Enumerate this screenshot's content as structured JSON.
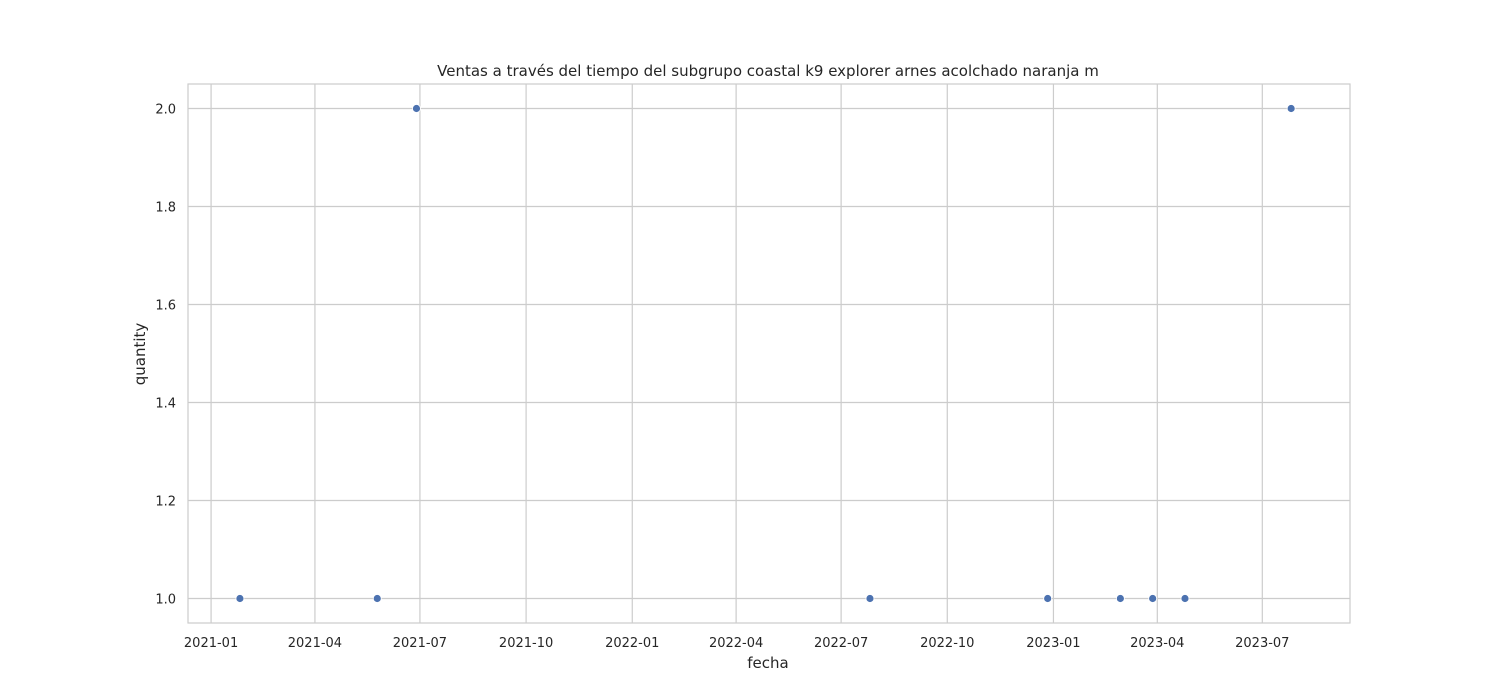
{
  "chart_data": {
    "type": "scatter",
    "title": "Ventas a través del tiempo del subgrupo coastal k9 explorer arnes acolchado naranja m",
    "xlabel": "fecha",
    "ylabel": "quantity",
    "x_ticks": [
      "2021-01",
      "2021-04",
      "2021-07",
      "2021-10",
      "2022-01",
      "2022-04",
      "2022-07",
      "2022-10",
      "2023-01",
      "2023-04",
      "2023-07"
    ],
    "y_ticks": [
      "1.0",
      "1.2",
      "1.4",
      "1.6",
      "1.8",
      "2.0"
    ],
    "xlim": [
      "2020-12-12",
      "2023-09-15"
    ],
    "ylim": [
      0.95,
      2.05
    ],
    "grid": true,
    "point_color": "#4c72b0",
    "points": [
      {
        "x": "2021-01-26",
        "y": 1
      },
      {
        "x": "2021-05-25",
        "y": 1
      },
      {
        "x": "2021-06-28",
        "y": 2
      },
      {
        "x": "2022-07-26",
        "y": 1
      },
      {
        "x": "2022-12-27",
        "y": 1
      },
      {
        "x": "2023-02-28",
        "y": 1
      },
      {
        "x": "2023-03-28",
        "y": 1
      },
      {
        "x": "2023-04-25",
        "y": 1
      },
      {
        "x": "2023-07-26",
        "y": 2
      }
    ]
  }
}
